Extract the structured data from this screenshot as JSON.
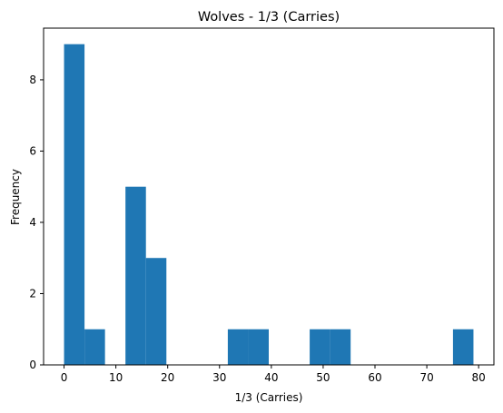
{
  "chart_data": {
    "type": "bar",
    "title": "Wolves - 1/3 (Carries)",
    "xlabel": "1/3 (Carries)",
    "ylabel": "Frequency",
    "xlim": [
      -3.95,
      82.95
    ],
    "ylim": [
      0,
      9.45
    ],
    "x_ticks": [
      0,
      10,
      20,
      30,
      40,
      50,
      60,
      70,
      80
    ],
    "y_ticks": [
      0,
      2,
      4,
      6,
      8
    ],
    "bins": [
      {
        "x0": 0.0,
        "x1": 3.95,
        "count": 9
      },
      {
        "x0": 3.95,
        "x1": 7.9,
        "count": 1
      },
      {
        "x0": 7.9,
        "x1": 11.85,
        "count": 0
      },
      {
        "x0": 11.85,
        "x1": 15.8,
        "count": 5
      },
      {
        "x0": 15.8,
        "x1": 19.75,
        "count": 3
      },
      {
        "x0": 19.75,
        "x1": 23.7,
        "count": 0
      },
      {
        "x0": 23.7,
        "x1": 27.65,
        "count": 0
      },
      {
        "x0": 27.65,
        "x1": 31.6,
        "count": 0
      },
      {
        "x0": 31.6,
        "x1": 35.55,
        "count": 1
      },
      {
        "x0": 35.55,
        "x1": 39.5,
        "count": 1
      },
      {
        "x0": 39.5,
        "x1": 43.45,
        "count": 0
      },
      {
        "x0": 43.45,
        "x1": 47.4,
        "count": 0
      },
      {
        "x0": 47.4,
        "x1": 51.35,
        "count": 1
      },
      {
        "x0": 51.35,
        "x1": 55.3,
        "count": 1
      },
      {
        "x0": 55.3,
        "x1": 59.25,
        "count": 0
      },
      {
        "x0": 59.25,
        "x1": 63.2,
        "count": 0
      },
      {
        "x0": 63.2,
        "x1": 67.15,
        "count": 0
      },
      {
        "x0": 67.15,
        "x1": 71.1,
        "count": 0
      },
      {
        "x0": 71.1,
        "x1": 75.05,
        "count": 0
      },
      {
        "x0": 75.05,
        "x1": 79.0,
        "count": 1
      }
    ],
    "bar_color": "#1f77b4",
    "grid": false,
    "legend": "none"
  }
}
